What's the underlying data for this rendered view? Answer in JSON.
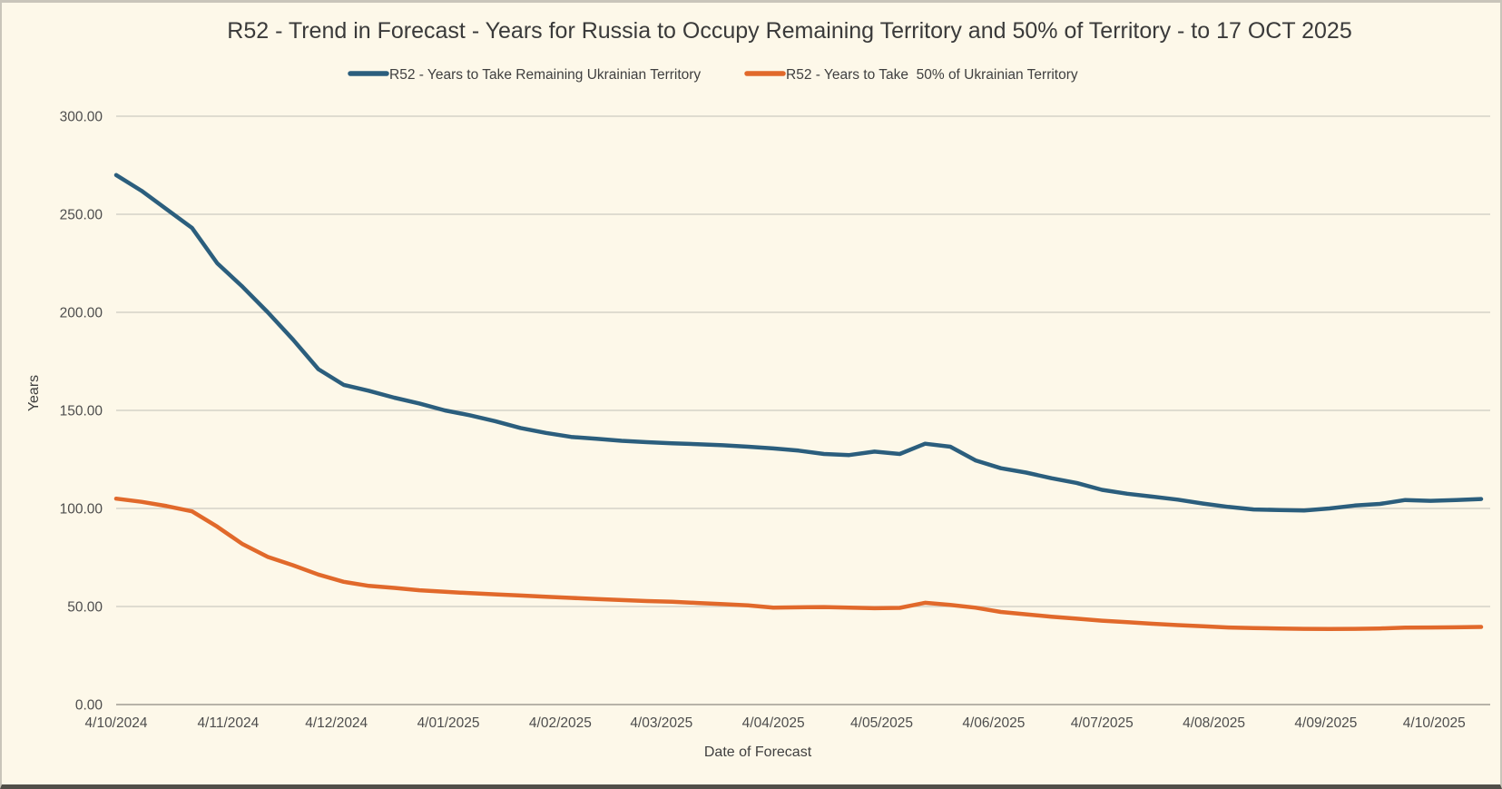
{
  "title": "R52 - Trend in Forecast - Years for Russia to Occupy Remaining Territory and 50% of Territory - to 17 OCT 2025",
  "legend": [
    {
      "label": "R52 - Years to Take Remaining Ukrainian Territory",
      "color": "#2b5e7d"
    },
    {
      "label": "R52 - Years to Take  50% of Ukrainian Territory",
      "color": "#e1692b"
    }
  ],
  "colors": {
    "background": "#fdf8e9",
    "gridline": "#d5d2c8",
    "axis_line": "#b7b3a8",
    "series_remaining": "#2b5e7d",
    "series_50pct": "#e1692b",
    "text": "#3f3f3f"
  },
  "chart_data": {
    "type": "line",
    "title": "R52 - Trend in Forecast - Years for Russia to Occupy Remaining Territory and 50% of Territory - to 17 OCT 2025",
    "xlabel": "Date of Forecast",
    "ylabel": "Years",
    "ylim": [
      0,
      300
    ],
    "grid": "horizontal",
    "legend_position": "top",
    "y_ticks": [
      {
        "v": 0,
        "label": "0.00"
      },
      {
        "v": 50,
        "label": "50.00"
      },
      {
        "v": 100,
        "label": "100.00"
      },
      {
        "v": 150,
        "label": "150.00"
      },
      {
        "v": 200,
        "label": "200.00"
      },
      {
        "v": 250,
        "label": "250.00"
      },
      {
        "v": 300,
        "label": "300.00"
      }
    ],
    "x_tick_labels": [
      "4/10/2024",
      "4/11/2024",
      "4/12/2024",
      "4/01/2025",
      "4/02/2025",
      "4/03/2025",
      "4/04/2025",
      "4/05/2025",
      "4/06/2025",
      "4/07/2025",
      "4/08/2025",
      "4/09/2025",
      "4/10/2025"
    ],
    "x_tick_days": [
      0,
      31,
      61,
      92,
      123,
      151,
      182,
      212,
      243,
      273,
      304,
      335,
      365
    ],
    "x_days": [
      0,
      7,
      14,
      21,
      28,
      35,
      42,
      49,
      56,
      63,
      70,
      77,
      84,
      91,
      98,
      105,
      112,
      119,
      126,
      133,
      140,
      147,
      154,
      161,
      168,
      175,
      182,
      189,
      196,
      203,
      210,
      217,
      224,
      231,
      238,
      245,
      252,
      259,
      266,
      273,
      280,
      287,
      294,
      301,
      308,
      315,
      322,
      329,
      336,
      343,
      350,
      357,
      364,
      371,
      378
    ],
    "x_dates": [
      "4/10/2024",
      "11/10/2024",
      "18/10/2024",
      "25/10/2024",
      "1/11/2024",
      "8/11/2024",
      "15/11/2024",
      "22/11/2024",
      "29/11/2024",
      "6/12/2024",
      "13/12/2024",
      "20/12/2024",
      "27/12/2024",
      "3/01/2025",
      "10/01/2025",
      "17/01/2025",
      "24/01/2025",
      "31/01/2025",
      "7/02/2025",
      "14/02/2025",
      "21/02/2025",
      "28/02/2025",
      "7/03/2025",
      "14/03/2025",
      "21/03/2025",
      "28/03/2025",
      "4/04/2025",
      "11/04/2025",
      "18/04/2025",
      "25/04/2025",
      "2/05/2025",
      "9/05/2025",
      "16/05/2025",
      "23/05/2025",
      "30/05/2025",
      "6/06/2025",
      "13/06/2025",
      "20/06/2025",
      "27/06/2025",
      "4/07/2025",
      "11/07/2025",
      "18/07/2025",
      "25/07/2025",
      "1/08/2025",
      "8/08/2025",
      "15/08/2025",
      "22/08/2025",
      "29/08/2025",
      "5/09/2025",
      "12/09/2025",
      "19/09/2025",
      "26/09/2025",
      "3/10/2025",
      "10/10/2025",
      "17/10/2025"
    ],
    "series": [
      {
        "name": "R52 - Years to Take Remaining Ukrainian Territory",
        "color": "#2b5e7d",
        "values": [
          270,
          262,
          252.5,
          243,
          225,
          213,
          200,
          186,
          171,
          163,
          160,
          156.5,
          153.5,
          150,
          147.5,
          144.5,
          141,
          138.5,
          136.5,
          135.5,
          134.5,
          133.8,
          133.2,
          132.8,
          132.2,
          131.5,
          130.6,
          129.5,
          127.8,
          127.2,
          129,
          127.8,
          133,
          131.5,
          124.5,
          120.5,
          118.3,
          115.4,
          113,
          109.5,
          107.5,
          106,
          104.5,
          102.5,
          100.8,
          99.5,
          99.2,
          99,
          100,
          101.5,
          102.3,
          104.3,
          103.9,
          104.3,
          104.8
        ]
      },
      {
        "name": "R52 - Years to Take  50% of Ukrainian Territory",
        "color": "#e1692b",
        "values": [
          105,
          103.4,
          101.2,
          98.5,
          90.7,
          81.8,
          75.3,
          71,
          66.3,
          62.6,
          60.5,
          59.5,
          58.3,
          57.5,
          56.8,
          56.2,
          55.6,
          55,
          54.4,
          53.8,
          53.3,
          52.8,
          52.4,
          51.8,
          51.2,
          50.6,
          49.4,
          49.6,
          49.7,
          49.4,
          49.1,
          49.3,
          51.9,
          50.8,
          49.4,
          47.2,
          46,
          44.8,
          43.8,
          42.8,
          42,
          41.2,
          40.5,
          39.9,
          39.3,
          39,
          38.8,
          38.6,
          38.5,
          38.6,
          38.8,
          39.2,
          39.3,
          39.4,
          39.6
        ]
      }
    ]
  }
}
